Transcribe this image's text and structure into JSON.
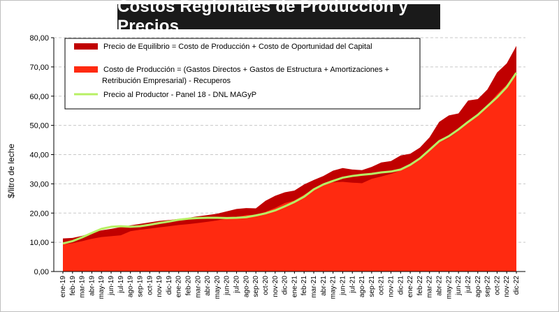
{
  "chart_data": {
    "type": "area",
    "title": "Costos Regionales de Producción y Precios",
    "ylabel": "$/litro de leche",
    "xlabel": "",
    "ylim": [
      0,
      80
    ],
    "yticks": [
      "0,00",
      "10,00",
      "20,00",
      "30,00",
      "40,00",
      "50,00",
      "60,00",
      "70,00",
      "80,00"
    ],
    "grid": "horizontal-dashed",
    "legend_position": "top-left",
    "categories": [
      "ene-19",
      "feb-19",
      "mar-19",
      "abr-19",
      "may-19",
      "jun-19",
      "jul-19",
      "ago-19",
      "sep-19",
      "oct-19",
      "nov-19",
      "dic-19",
      "ene-20",
      "feb-20",
      "mar-20",
      "abr-20",
      "may-20",
      "jun-20",
      "jul-20",
      "ago-20",
      "sep-20",
      "oct-20",
      "nov-20",
      "dic-20",
      "ene-21",
      "feb-21",
      "mar-21",
      "abr-21",
      "may-21",
      "jun-21",
      "jul-21",
      "ago-21",
      "sep-21",
      "oct-21",
      "nov-21",
      "dic-21",
      "ene-22",
      "feb-22",
      "mar-22",
      "abr-22",
      "may-22",
      "jun-22",
      "jul-22",
      "ago-22",
      "sep-22",
      "oct-22",
      "nov-22",
      "dic-22"
    ],
    "series": [
      {
        "name": "Precio de Equilibrio = Costo de Producción + Costo de Oportunidad del Capital",
        "kind": "area",
        "color": "#c00000",
        "values": [
          11.3,
          11.5,
          12.2,
          13.3,
          14.1,
          14.6,
          15.2,
          15.8,
          16.3,
          16.8,
          17.3,
          17.6,
          18.0,
          18.4,
          18.9,
          19.3,
          19.8,
          20.6,
          21.4,
          21.7,
          21.6,
          24.2,
          25.9,
          27.1,
          27.7,
          29.8,
          31.3,
          32.7,
          34.5,
          35.4,
          34.9,
          34.7,
          35.8,
          37.3,
          37.8,
          39.7,
          40.3,
          42.4,
          45.9,
          51.2,
          53.4,
          54.1,
          58.5,
          59.0,
          62.3,
          68.1,
          71.2,
          77.2
        ]
      },
      {
        "name": "Costo de Producción = (Gastos Directos + Gastos de Estructura + Amortizaciones + Retribución Empresarial) - Recuperos",
        "name_line2": "Retribución Empresarial) - Recuperos",
        "name_line1": "Costo de Producción = (Gastos Directos + Gastos de Estructura + Amortizaciones +",
        "kind": "area",
        "color": "#ff2a10",
        "values": [
          9.3,
          9.7,
          10.4,
          11.2,
          11.8,
          12.1,
          12.4,
          13.8,
          14.3,
          14.7,
          15.1,
          15.5,
          15.9,
          16.2,
          16.6,
          17.0,
          17.5,
          18.1,
          18.6,
          19.3,
          19.4,
          20.4,
          21.8,
          23.4,
          24.3,
          26.3,
          28.2,
          29.6,
          30.5,
          30.7,
          30.4,
          30.2,
          31.7,
          32.5,
          33.4,
          34.6,
          36.3,
          38.5,
          42.0,
          44.2,
          45.7,
          48.1,
          51.1,
          53.9,
          56.8,
          60.7,
          63.9,
          67.3
        ]
      },
      {
        "name": "Precio al Productor - Panel 18 - DNL MAGyP",
        "kind": "line",
        "color": "#b8f064",
        "values": [
          9.6,
          10.4,
          11.7,
          13.2,
          14.6,
          15.3,
          15.5,
          15.3,
          15.5,
          16.0,
          16.6,
          17.1,
          17.7,
          18.1,
          18.3,
          18.4,
          18.4,
          18.3,
          18.4,
          18.6,
          19.2,
          19.9,
          20.9,
          22.3,
          23.8,
          25.6,
          28.1,
          29.8,
          31.0,
          32.1,
          32.7,
          33.1,
          33.4,
          33.9,
          34.2,
          34.9,
          36.5,
          38.7,
          41.6,
          44.6,
          46.3,
          48.6,
          51.2,
          53.6,
          56.6,
          59.6,
          63.1,
          68.0
        ]
      }
    ]
  }
}
